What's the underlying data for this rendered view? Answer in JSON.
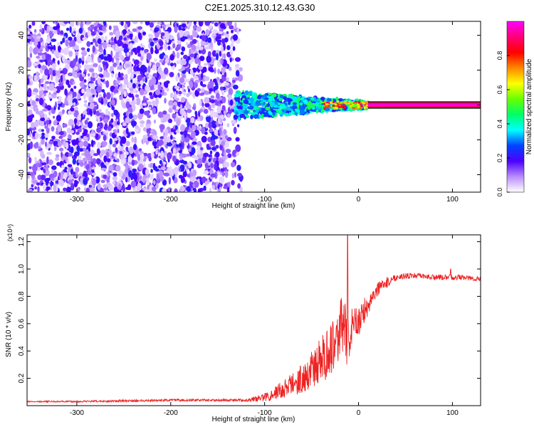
{
  "title": "C2E1.2025.310.12.43.G30",
  "chart_data": [
    {
      "type": "heatmap",
      "xlabel": "Height of straight line (km)",
      "ylabel": "Frequency (Hz)",
      "xlim": [
        -353,
        130
      ],
      "ylim": [
        -50,
        48
      ],
      "x_ticks": [
        -300,
        -200,
        -100,
        0,
        100
      ],
      "y_ticks": [
        -40,
        -20,
        0,
        20,
        40
      ],
      "colorbar": {
        "label": "Normalized spectral amplitude",
        "range": [
          0.0,
          1.0
        ],
        "ticks": [
          "0.0",
          "0.2",
          "0.4",
          "0.6",
          "0.8"
        ],
        "colors": [
          "#ffffff",
          "#b98cff",
          "#4c00ff",
          "#0044ff",
          "#00ffff",
          "#00ff66",
          "#66ff00",
          "#ffff00",
          "#ff8800",
          "#ff0000",
          "#ff0077",
          "#ff00ff"
        ]
      },
      "regions": [
        {
          "x": [
            -353,
            -125
          ],
          "freq": [
            -50,
            48
          ],
          "amplitude": [
            0.0,
            0.2
          ]
        },
        {
          "x": [
            -130,
            10
          ],
          "freq": [
            -8,
            8
          ],
          "amplitude": [
            0.2,
            0.5
          ]
        },
        {
          "x": [
            -40,
            10
          ],
          "freq": [
            -2,
            2
          ],
          "amplitude": [
            0.5,
            0.9
          ]
        },
        {
          "x": [
            10,
            130
          ],
          "freq": [
            -1.5,
            1.5
          ],
          "amplitude": [
            0.9,
            1.0
          ]
        }
      ]
    },
    {
      "type": "line",
      "xlabel": "Height of straight line (km)",
      "ylabel": "SNR (10 * v/v)",
      "y_multiplier": "(x10⁴)",
      "xlim": [
        -353,
        130
      ],
      "ylim": [
        0,
        1.25
      ],
      "x_ticks": [
        -300,
        -200,
        -100,
        0,
        100
      ],
      "y_ticks": [
        "0.2",
        "0.4",
        "0.6",
        "0.8",
        "1.0",
        "1.2"
      ],
      "series": [
        {
          "color": "#ee2222",
          "x": [
            -353,
            -300,
            -250,
            -200,
            -150,
            -120,
            -100,
            -90,
            -80,
            -70,
            -60,
            -50,
            -40,
            -30,
            -25,
            -20,
            -15,
            -12,
            -10,
            -8,
            -5,
            0,
            5,
            10,
            15,
            20,
            30,
            40,
            50,
            60,
            80,
            100,
            110,
            120,
            130
          ],
          "values": [
            0.03,
            0.03,
            0.035,
            0.04,
            0.04,
            0.04,
            0.06,
            0.09,
            0.12,
            0.16,
            0.2,
            0.26,
            0.33,
            0.42,
            0.5,
            0.55,
            0.6,
            0.45,
            0.5,
            0.55,
            0.58,
            0.62,
            0.68,
            0.74,
            0.8,
            0.85,
            0.9,
            0.94,
            0.95,
            0.95,
            0.94,
            0.94,
            0.94,
            0.93,
            0.93
          ],
          "noise": [
            0.005,
            0.006,
            0.008,
            0.008,
            0.008,
            0.01,
            0.03,
            0.05,
            0.07,
            0.09,
            0.11,
            0.14,
            0.17,
            0.2,
            0.22,
            0.24,
            0.2,
            0.18,
            0.18,
            0.16,
            0.14,
            0.12,
            0.1,
            0.08,
            0.06,
            0.05,
            0.04,
            0.025,
            0.02,
            0.02,
            0.02,
            0.02,
            0.02,
            0.02,
            0.02
          ],
          "spikes": [
            {
              "x": -11.5,
              "value": 1.25
            },
            {
              "x": 98,
              "value": 1.0
            }
          ]
        }
      ]
    }
  ]
}
